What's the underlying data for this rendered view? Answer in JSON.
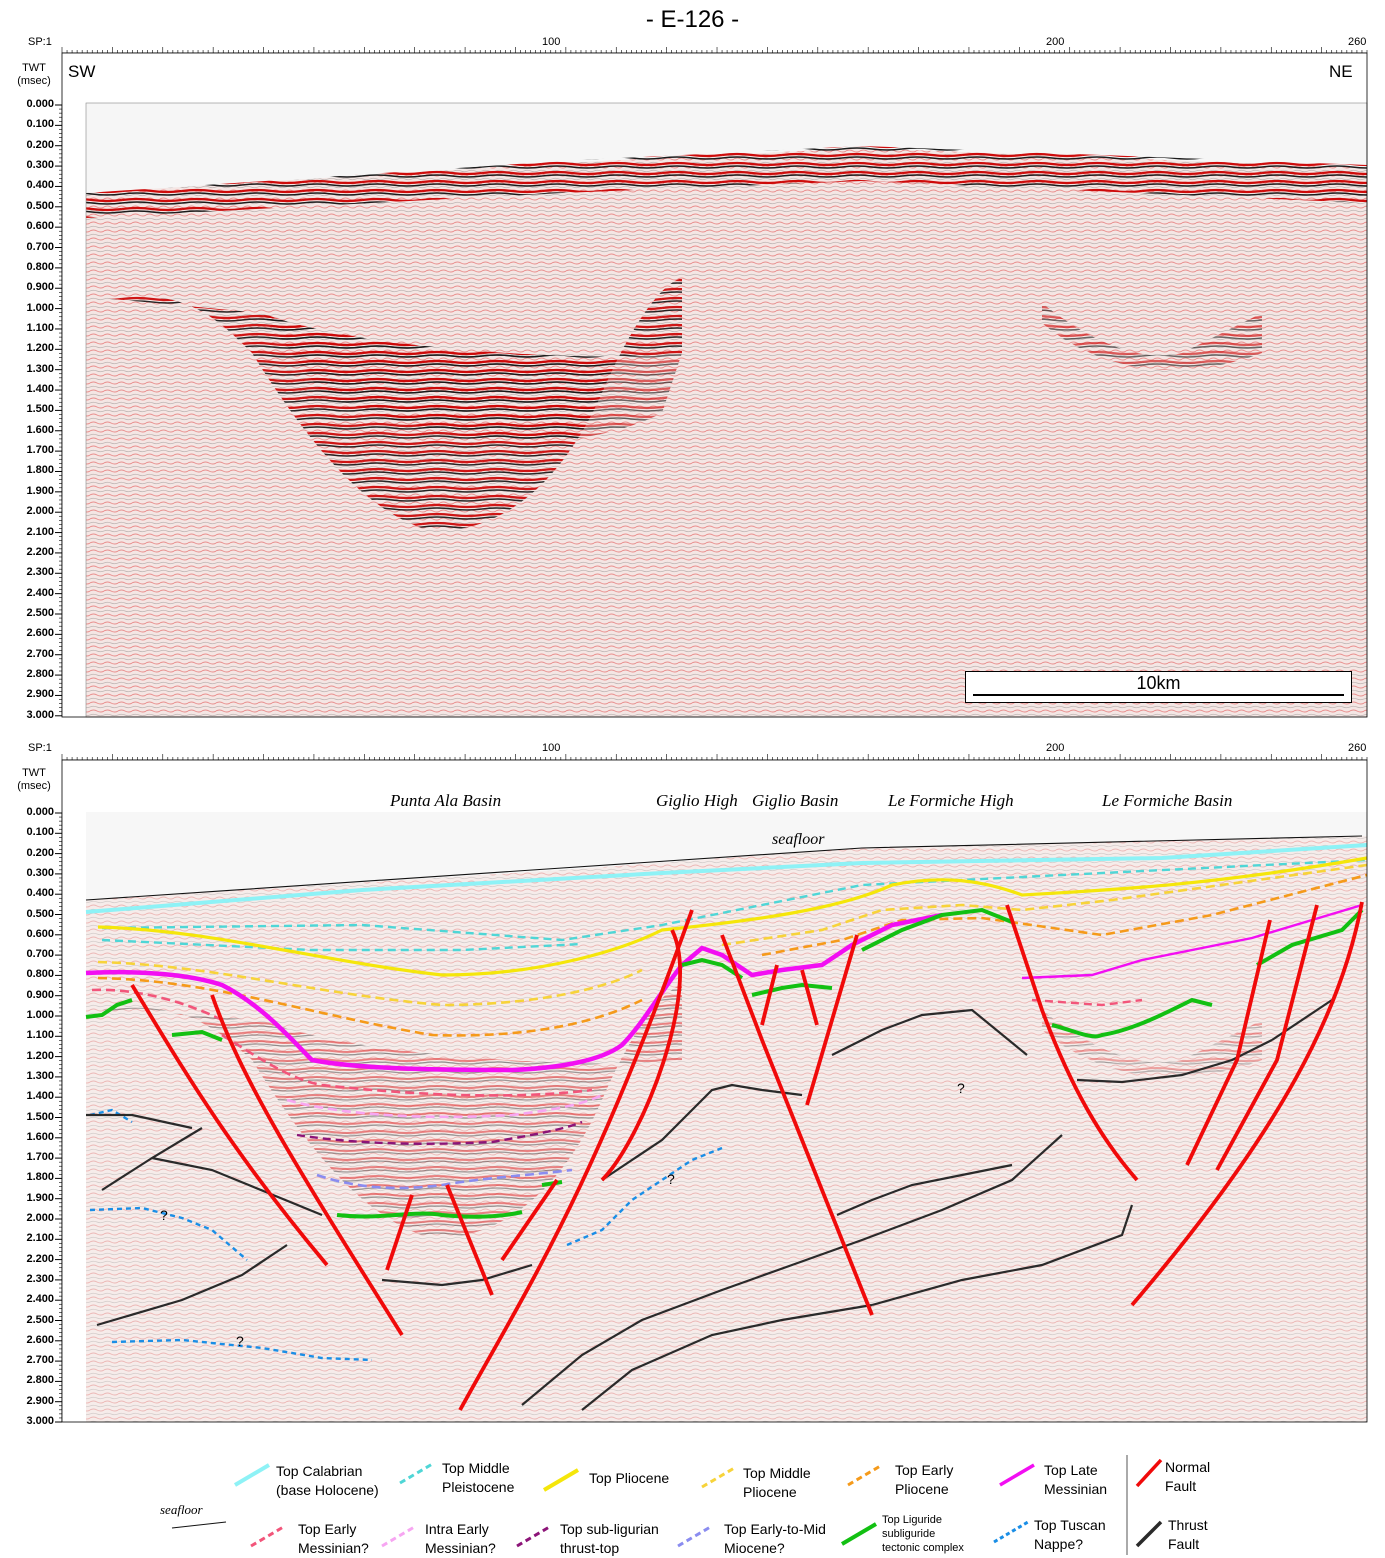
{
  "title": "- E-126 -",
  "sp_axis": {
    "prefix": "SP:",
    "labels": [
      "1",
      "100",
      "200",
      "260"
    ]
  },
  "twt_axis": {
    "title_line1": "TWT",
    "title_line2": "(msec)",
    "ticks": [
      "0.000",
      "0.100",
      "0.200",
      "0.300",
      "0.400",
      "0.500",
      "0.600",
      "0.700",
      "0.800",
      "0.900",
      "1.000",
      "1.100",
      "1.200",
      "1.300",
      "1.400",
      "1.500",
      "1.600",
      "1.700",
      "1.800",
      "1.900",
      "2.000",
      "2.100",
      "2.200",
      "2.300",
      "2.400",
      "2.500",
      "2.600",
      "2.700",
      "2.800",
      "2.900",
      "3.000"
    ]
  },
  "top_panel": {
    "dir_left": "SW",
    "dir_right": "NE",
    "scale_bar": "10km"
  },
  "bottom_panel": {
    "basins": [
      "Punta Ala Basin",
      "Giglio High",
      "Giglio Basin",
      "Le Formiche High",
      "Le Formiche Basin"
    ],
    "seafloor": "seafloor",
    "question": "?"
  },
  "legend": {
    "seafloor": "seafloor",
    "items": [
      {
        "l1": "Top Calabrian",
        "l2": "(base Holocene)",
        "color": "#8ef2f6",
        "dash": false
      },
      {
        "l1": "Top Middle",
        "l2": "Pleistocene",
        "color": "#4fd6d6",
        "dash": true
      },
      {
        "l1": "Top Pliocene",
        "l2": "",
        "color": "#f5e60a",
        "dash": false
      },
      {
        "l1": "Top Middle",
        "l2": "Pliocene",
        "color": "#f7d33a",
        "dash": true
      },
      {
        "l1": "Top Early",
        "l2": "Pliocene",
        "color": "#f59a1a",
        "dash": true
      },
      {
        "l1": "Top Late",
        "l2": "Messinian",
        "color": "#f20ef2",
        "dash": false
      },
      {
        "l1": "Normal",
        "l2": "Fault",
        "color": "#f00a0a",
        "dash": false
      },
      {
        "l1": "Top Early",
        "l2": "Messinian?",
        "color": "#f2557a",
        "dash": true
      },
      {
        "l1": "Intra Early",
        "l2": "Messinian?",
        "color": "#f7a6f2",
        "dash": true
      },
      {
        "l1": "Top sub-ligurian",
        "l2": "thrust-top",
        "color": "#8c1478",
        "dash": true
      },
      {
        "l1": "Top Early-to-Mid",
        "l2": "Miocene?",
        "color": "#8a8cf0",
        "dash": true
      },
      {
        "l1": "Top Liguride",
        "l2": "subliguride",
        "l3": "tectonic complex",
        "color": "#12c012",
        "dash": false
      },
      {
        "l1": "Top Tuscan",
        "l2": "Nappe?",
        "color": "#1a8ee6",
        "dash": true
      },
      {
        "l1": "Thrust",
        "l2": "Fault",
        "color": "#2a2a2a",
        "dash": false
      }
    ]
  }
}
